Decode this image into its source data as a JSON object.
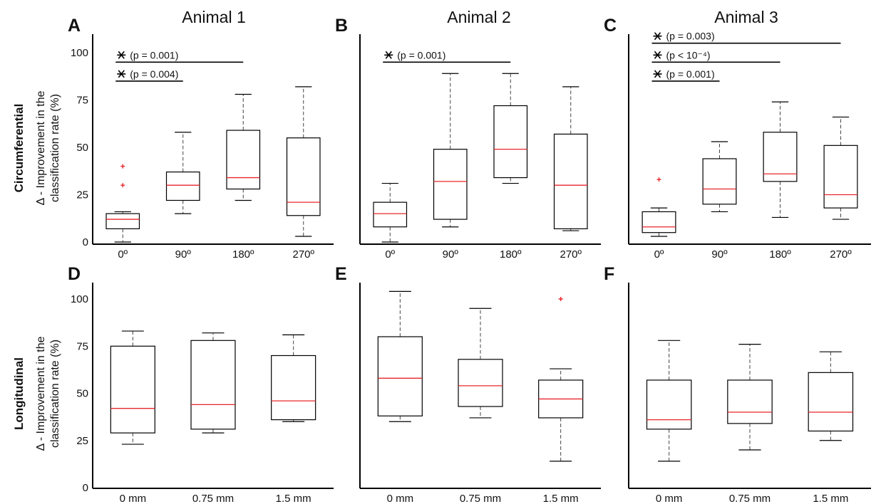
{
  "columns": [
    "Animal 1",
    "Animal 2",
    "Animal 3"
  ],
  "rows": [
    {
      "label": "Circumferential",
      "ylabel": [
        "Δ - Improvement in the",
        "classification rate (%)"
      ]
    },
    {
      "label": "Longitudinal",
      "ylabel": [
        "Δ - Improvement in the",
        "classification rate (%)"
      ]
    }
  ],
  "y_ticks": [
    "0",
    "25",
    "50",
    "75",
    "100"
  ],
  "style": {
    "box_color": "#000000",
    "median_color": "#e8262b",
    "outlier_color": "#e8262b"
  },
  "chart_data": [
    {
      "panel": "A",
      "type": "box",
      "row": "Circumferential",
      "column": "Animal 1",
      "categories": [
        "0º",
        "90º",
        "180º",
        "270º"
      ],
      "ylim": [
        0,
        105
      ],
      "show_y_ticks": true,
      "boxes": [
        {
          "whislo": 0,
          "q1": 7,
          "med": 12,
          "q3": 15,
          "whishi": 16,
          "fliers": [
            30,
            40
          ]
        },
        {
          "whislo": 15,
          "q1": 22,
          "med": 30,
          "q3": 37,
          "whishi": 58,
          "fliers": []
        },
        {
          "whislo": 22,
          "q1": 28,
          "med": 34,
          "q3": 59,
          "whishi": 78,
          "fliers": []
        },
        {
          "whislo": 3,
          "q1": 14,
          "med": 21,
          "q3": 55,
          "whishi": 82,
          "fliers": []
        }
      ],
      "annotations": [
        {
          "from": 0,
          "to": 2,
          "y": 95,
          "label": "(p = 0.001)",
          "p_value": "0.001"
        },
        {
          "from": 0,
          "to": 1,
          "y": 85,
          "label": "(p = 0.004)",
          "p_value": "0.004"
        }
      ]
    },
    {
      "panel": "B",
      "type": "box",
      "row": "Circumferential",
      "column": "Animal 2",
      "categories": [
        "0º",
        "90º",
        "180º",
        "270º"
      ],
      "ylim": [
        0,
        105
      ],
      "show_y_ticks": false,
      "boxes": [
        {
          "whislo": 0,
          "q1": 8,
          "med": 15,
          "q3": 21,
          "whishi": 31,
          "fliers": []
        },
        {
          "whislo": 8,
          "q1": 12,
          "med": 32,
          "q3": 49,
          "whishi": 89,
          "fliers": []
        },
        {
          "whislo": 31,
          "q1": 34,
          "med": 49,
          "q3": 72,
          "whishi": 89,
          "fliers": []
        },
        {
          "whislo": 6,
          "q1": 7,
          "med": 30,
          "q3": 57,
          "whishi": 82,
          "fliers": []
        }
      ],
      "annotations": [
        {
          "from": 0,
          "to": 2,
          "y": 95,
          "label": "(p = 0.001)",
          "p_value": "0.001"
        }
      ]
    },
    {
      "panel": "C",
      "type": "box",
      "row": "Circumferential",
      "column": "Animal 3",
      "categories": [
        "0º",
        "90º",
        "180º",
        "270º"
      ],
      "ylim": [
        0,
        105
      ],
      "show_y_ticks": false,
      "boxes": [
        {
          "whislo": 3,
          "q1": 5,
          "med": 8,
          "q3": 16,
          "whishi": 18,
          "fliers": [
            33
          ]
        },
        {
          "whislo": 16,
          "q1": 20,
          "med": 28,
          "q3": 44,
          "whishi": 53,
          "fliers": []
        },
        {
          "whislo": 13,
          "q1": 32,
          "med": 36,
          "q3": 58,
          "whishi": 74,
          "fliers": []
        },
        {
          "whislo": 12,
          "q1": 18,
          "med": 25,
          "q3": 51,
          "whishi": 66,
          "fliers": []
        }
      ],
      "annotations": [
        {
          "from": 0,
          "to": 3,
          "y": 105,
          "label": "(p = 0.003)",
          "p_value": "0.003"
        },
        {
          "from": 0,
          "to": 2,
          "y": 95,
          "label": "(p < 10⁻⁴)",
          "p_value": "< 10⁻⁴"
        },
        {
          "from": 0,
          "to": 1,
          "y": 85,
          "label": "(p = 0.001)",
          "p_value": "0.001"
        }
      ]
    },
    {
      "panel": "D",
      "type": "box",
      "row": "Longitudinal",
      "column": "Animal 1",
      "categories": [
        "0 mm",
        "0.75 mm",
        "1.5 mm"
      ],
      "ylim": [
        0,
        105
      ],
      "show_y_ticks": true,
      "boxes": [
        {
          "whislo": 23,
          "q1": 29,
          "med": 42,
          "q3": 75,
          "whishi": 83,
          "fliers": []
        },
        {
          "whislo": 29,
          "q1": 31,
          "med": 44,
          "q3": 78,
          "whishi": 82,
          "fliers": []
        },
        {
          "whislo": 35,
          "q1": 36,
          "med": 46,
          "q3": 70,
          "whishi": 81,
          "fliers": []
        }
      ],
      "annotations": []
    },
    {
      "panel": "E",
      "type": "box",
      "row": "Longitudinal",
      "column": "Animal 2",
      "categories": [
        "0 mm",
        "0.75 mm",
        "1.5 mm"
      ],
      "ylim": [
        0,
        105
      ],
      "show_y_ticks": false,
      "boxes": [
        {
          "whislo": 35,
          "q1": 38,
          "med": 58,
          "q3": 80,
          "whishi": 104,
          "fliers": []
        },
        {
          "whislo": 37,
          "q1": 43,
          "med": 54,
          "q3": 68,
          "whishi": 95,
          "fliers": []
        },
        {
          "whislo": 14,
          "q1": 37,
          "med": 47,
          "q3": 57,
          "whishi": 63,
          "fliers": [
            100
          ]
        }
      ],
      "annotations": []
    },
    {
      "panel": "F",
      "type": "box",
      "row": "Longitudinal",
      "column": "Animal 3",
      "categories": [
        "0 mm",
        "0.75 mm",
        "1.5 mm"
      ],
      "ylim": [
        0,
        105
      ],
      "show_y_ticks": false,
      "boxes": [
        {
          "whislo": 14,
          "q1": 31,
          "med": 36,
          "q3": 57,
          "whishi": 78,
          "fliers": []
        },
        {
          "whislo": 20,
          "q1": 34,
          "med": 40,
          "q3": 57,
          "whishi": 76,
          "fliers": []
        },
        {
          "whislo": 25,
          "q1": 30,
          "med": 40,
          "q3": 61,
          "whishi": 72,
          "fliers": []
        }
      ],
      "annotations": []
    }
  ]
}
